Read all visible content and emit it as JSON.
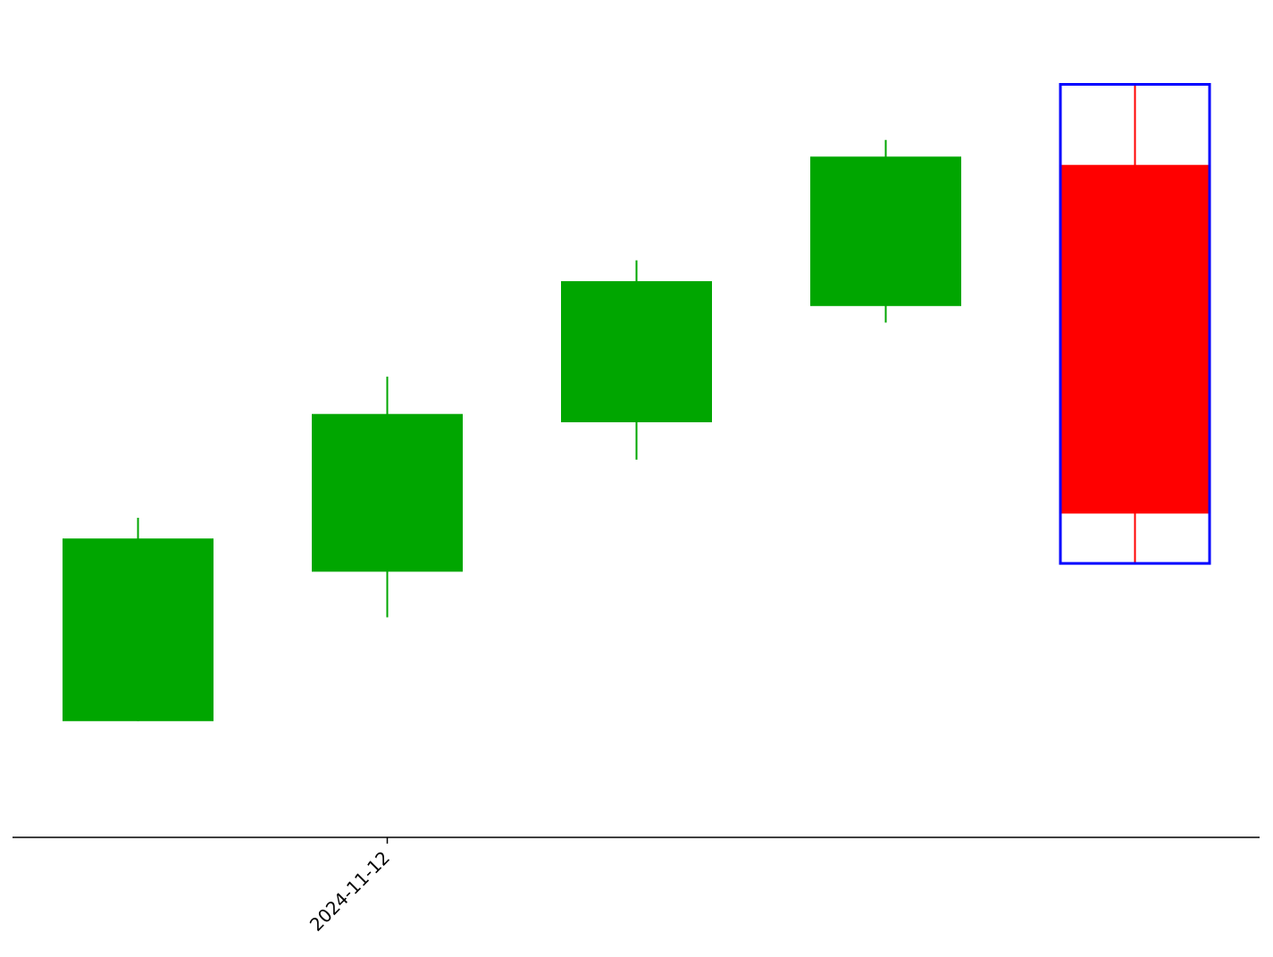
{
  "chart_data": {
    "type": "candlestick",
    "x_tick_labels": [
      "2024-11-12"
    ],
    "candles": [
      {
        "open": 1.4,
        "high": 3.85,
        "low": 1.4,
        "close": 3.6
      },
      {
        "open": 3.2,
        "high": 5.55,
        "low": 2.65,
        "close": 5.1
      },
      {
        "open": 5.0,
        "high": 6.95,
        "low": 4.55,
        "close": 6.7
      },
      {
        "open": 6.4,
        "high": 8.4,
        "low": 6.2,
        "close": 8.2
      },
      {
        "open": 8.1,
        "high": 9.07,
        "low": 3.3,
        "close": 3.9
      }
    ],
    "highlight_index": 4,
    "ylim": [
      0,
      9.6
    ],
    "colors": {
      "up": "#00a600",
      "down": "#ff0000",
      "highlight_box": "#0000ff",
      "axis": "#000000"
    },
    "grid": false,
    "legend": "none"
  }
}
